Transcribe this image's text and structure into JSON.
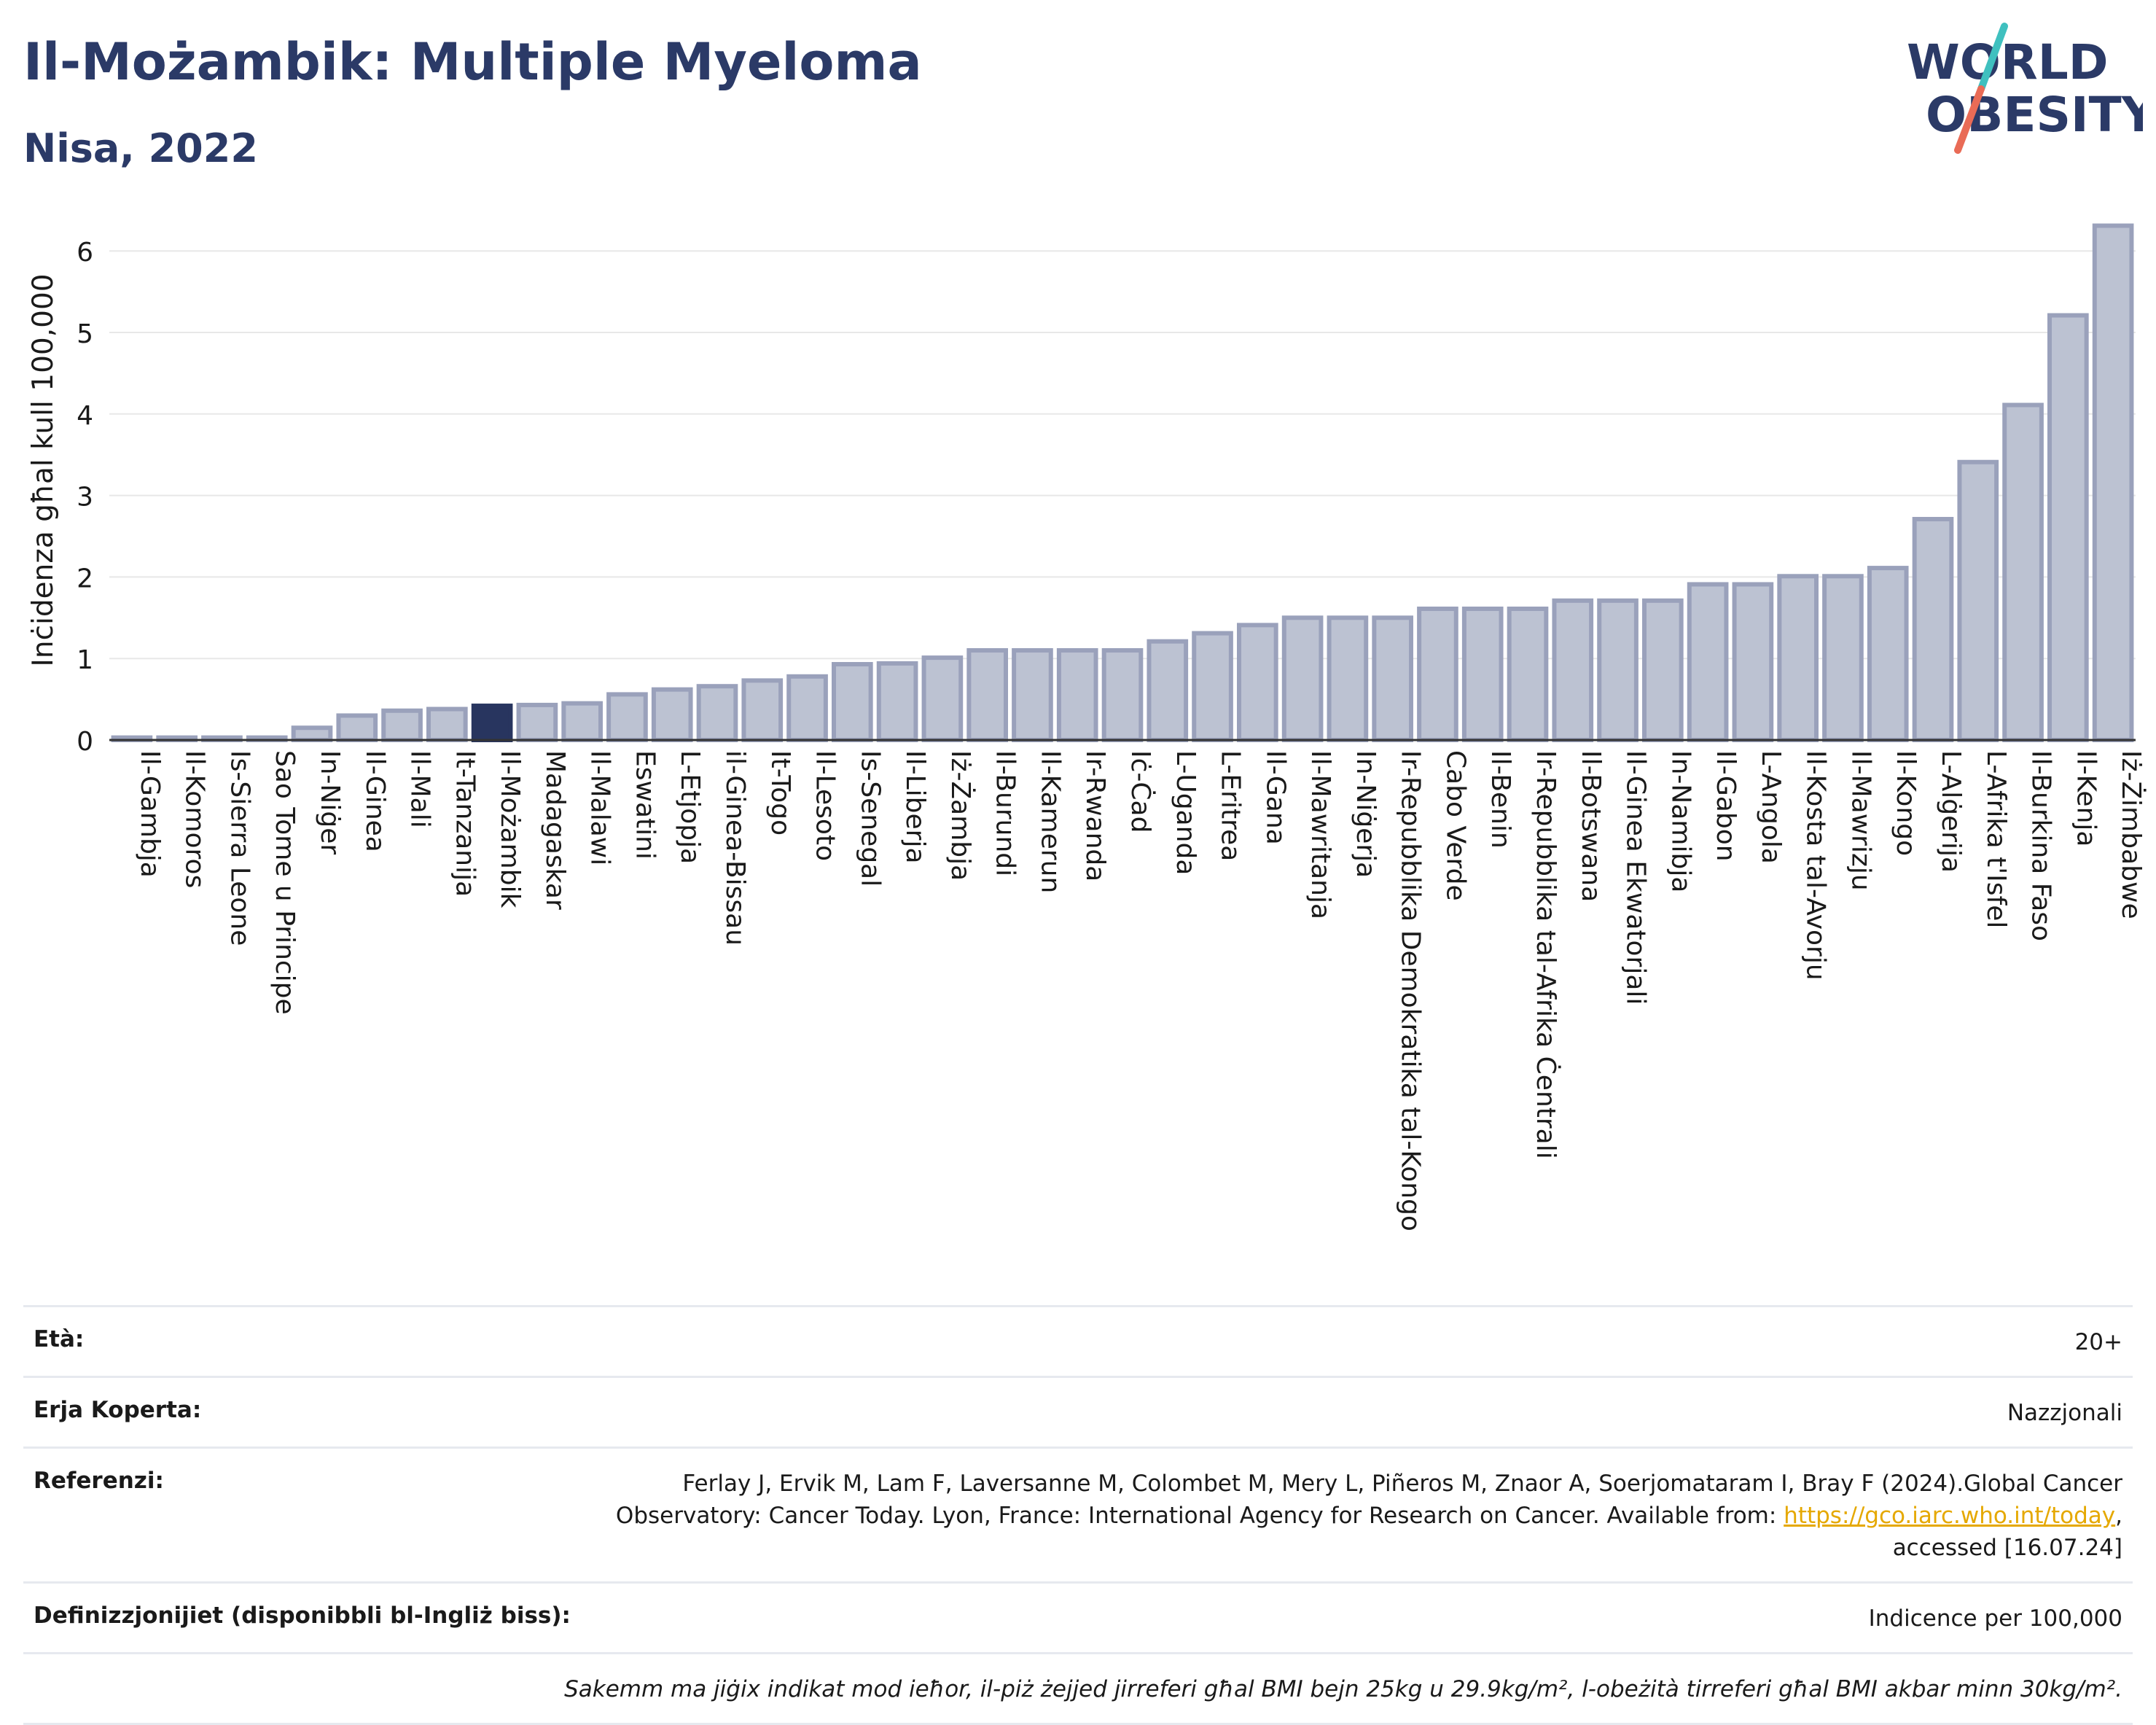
{
  "header": {
    "title": "Il-Możambik: Multiple Myeloma",
    "subtitle": "Nisa, 2022"
  },
  "logo": {
    "line1": "WORLD",
    "line2": "OBESITY"
  },
  "colors": {
    "bar": "#bcc2d2",
    "bar_border": "#9aa1bb",
    "highlight": "#28355f",
    "title": "#2b3a67"
  },
  "chart_data": {
    "type": "bar",
    "title": "Il-Możambik: Multiple Myeloma",
    "subtitle": "Nisa, 2022",
    "ylabel": "Inċidenza għal kull 100,000",
    "xlabel": "",
    "ylim": [
      0,
      6.5
    ],
    "yticks": [
      0,
      1,
      2,
      3,
      4,
      5,
      6
    ],
    "grid": true,
    "highlight": "Il-Możambik",
    "categories": [
      "Il-Gambja",
      "Il-Komoros",
      "Is-Sierra Leone",
      "Sao Tome u Principe",
      "In-Niġer",
      "Il-Ginea",
      "Il-Mali",
      "It-Tanzanija",
      "Il-Możambik",
      "Madagaskar",
      "Il-Malawi",
      "Eswatini",
      "L-Etjopja",
      "il-Ginea-Bissau",
      "It-Togo",
      "Il-Lesoto",
      "Is-Senegal",
      "Il-Liberja",
      "Iż-Żambja",
      "Il-Burundi",
      "Il-Kamerun",
      "Ir-Rwanda",
      "Iċ-Ċad",
      "L-Uganda",
      "L-Eritrea",
      "Il-Gana",
      "Il-Mawritanja",
      "In-Niġerja",
      "Ir-Repubblika Demokratika tal-Kongo",
      "Cabo Verde",
      "Il-Benin",
      "Ir-Repubblika tal-Afrika Ċentrali",
      "Il-Botswana",
      "Il-Ginea Ekwatorjali",
      "In-Namibja",
      "Il-Gabon",
      "L-Angola",
      "Il-Kosta tal-Avorju",
      "Il-Mawrizju",
      "Il-Kongo",
      "L-Alġerija",
      "L-Afrika t'Isfel",
      "Il-Burkina Faso",
      "Il-Kenja",
      "Iż-Żimbabwe"
    ],
    "values": [
      0.03,
      0.03,
      0.03,
      0.03,
      0.15,
      0.3,
      0.36,
      0.38,
      0.42,
      0.43,
      0.45,
      0.56,
      0.62,
      0.66,
      0.73,
      0.78,
      0.93,
      0.94,
      1.01,
      1.1,
      1.1,
      1.1,
      1.1,
      1.21,
      1.31,
      1.41,
      1.5,
      1.5,
      1.5,
      1.61,
      1.61,
      1.61,
      1.71,
      1.71,
      1.71,
      1.91,
      1.91,
      2.01,
      2.01,
      2.11,
      2.71,
      3.41,
      4.11,
      5.21,
      6.31
    ]
  },
  "meta": {
    "age_label": "Età:",
    "age_value": "20+",
    "area_label": "Erja Koperta:",
    "area_value": "Nazzjonali",
    "ref_label": "Referenzi:",
    "ref_line1": "Ferlay J, Ervik M, Lam F, Laversanne M, Colombet M, Mery L, Piñeros M, Znaor A, Soerjomataram I, Bray F (2024).Global Cancer",
    "ref_line2": "Observatory: Cancer Today. Lyon, France: International Agency for Research on Cancer. Available from:",
    "ref_link": "https://gco.iarc.who.int/today",
    "ref_line3": "accessed [16.07.24]",
    "def_label": "Definizzjonijiet (disponibbli bl-Ingliż biss):",
    "def_value": "Indicence per 100,000",
    "note": "Sakemm ma jiġix indikat mod ieħor, il-piż żejjed jirreferi għal BMI bejn 25kg u 29.9kg/m², l-obeżità tirreferi għal BMI akbar minn 30kg/m²."
  }
}
